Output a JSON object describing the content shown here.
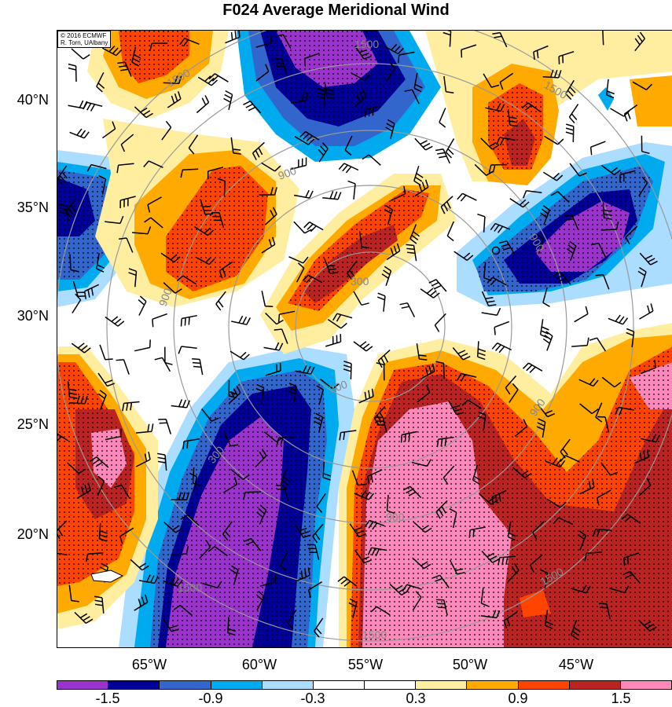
{
  "title": "F024 Average Meridional Wind",
  "credit": {
    "line1": "© 2016 ECMWF",
    "line2": "R. Torn, UAlbany"
  },
  "lat_labels": [
    "40°N",
    "35°N",
    "30°N",
    "25°N",
    "20°N"
  ],
  "lon_labels": [
    "65°W",
    "60°W",
    "55°W",
    "50°W",
    "45°W"
  ],
  "colorbar": {
    "colors": [
      "#9933cc",
      "#000099",
      "#3366cc",
      "#00aaee",
      "#aaddff",
      "#ffffff",
      "#ffffff",
      "#ffeea0",
      "#ffaa00",
      "#ff4400",
      "#bb2222",
      "#ff88bb"
    ],
    "labels": [
      "-1.5",
      "-0.9",
      "-0.3",
      "0.3",
      "0.9",
      "1.5"
    ]
  },
  "range_ring_labels": [
    "1500",
    "1500",
    "1500",
    "900",
    "900",
    "900",
    "900",
    "300",
    "300",
    "300",
    "900",
    "1500",
    "1500",
    "1500"
  ],
  "center_marker": "o-symbol"
}
